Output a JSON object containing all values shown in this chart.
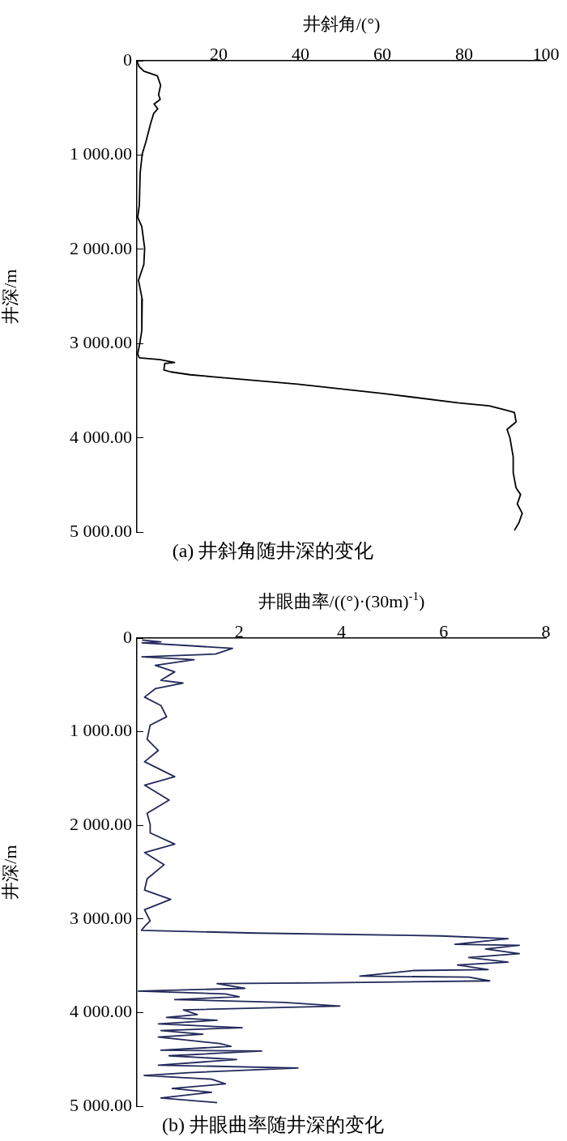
{
  "chart_data": [
    {
      "type": "line",
      "title": "(a) 井斜角随井深的变化",
      "xlabel": "井斜角/(°)",
      "ylabel": "井深/m",
      "xlim": [
        0,
        100
      ],
      "xticks": [
        20,
        40,
        60,
        80,
        100
      ],
      "ylim": [
        5000,
        0
      ],
      "yticks": [
        {
          "value": 0,
          "label": "0"
        },
        {
          "value": 1000,
          "label": "1 000.00"
        },
        {
          "value": 2000,
          "label": "2 000.00"
        },
        {
          "value": 3000,
          "label": "3 000.00"
        },
        {
          "value": 4000,
          "label": "4 000.00"
        },
        {
          "value": 5000,
          "label": "5 000.00"
        }
      ],
      "grid": false,
      "legend": false,
      "marker": "none",
      "line_style": "solid",
      "series": [
        {
          "color": "#000000",
          "x": [
            0,
            0.5,
            1.7,
            5.0,
            5.8,
            5.3,
            5.7,
            4.2,
            5.1,
            4.1,
            3.4,
            2.8,
            2.2,
            1.3,
            0.8,
            0.6,
            0.2,
            1.2,
            1.9,
            1.7,
            0.4,
            1.3,
            1.2,
            0.7,
            0.2,
            0.6,
            5.7,
            9.2,
            6.8,
            6.6,
            8.3,
            13.0,
            18.1,
            39.3,
            60.5,
            78.8,
            86.1,
            89.8,
            92.3,
            92.7,
            90.5,
            91.2,
            92.0,
            92.0,
            92.7,
            93.8,
            93.0,
            94.2,
            93.4,
            92.3
          ],
          "values": [
            0,
            60,
            110,
            160,
            260,
            360,
            410,
            460,
            510,
            560,
            660,
            760,
            860,
            990,
            1190,
            1530,
            1660,
            1760,
            1990,
            2160,
            2330,
            2530,
            2860,
            3000,
            3110,
            3150,
            3170,
            3200,
            3210,
            3280,
            3300,
            3330,
            3350,
            3430,
            3530,
            3630,
            3660,
            3700,
            3730,
            3830,
            3910,
            4000,
            4200,
            4370,
            4530,
            4600,
            4700,
            4800,
            4900,
            4980
          ]
        }
      ]
    },
    {
      "type": "line",
      "title": "(b) 井眼曲率随井深的变化",
      "xlabel": "井眼曲率/((°)·(30m)$^{-1}$)",
      "ylabel": "井深/m",
      "xlim": [
        0,
        8
      ],
      "xticks": [
        2,
        4,
        6,
        8
      ],
      "ylim": [
        5000,
        0
      ],
      "yticks": [
        {
          "value": 0,
          "label": "0"
        },
        {
          "value": 1000,
          "label": "1 000.00"
        },
        {
          "value": 2000,
          "label": "2 000.00"
        },
        {
          "value": 3000,
          "label": "3 000.00"
        },
        {
          "value": 4000,
          "label": "4 000.00"
        },
        {
          "value": 5000,
          "label": "5 000.00"
        }
      ],
      "grid": false,
      "legend": false,
      "marker": "none",
      "line_style": "solid",
      "series": [
        {
          "color": "#22285a",
          "x": [
            0.1,
            0.47,
            0.1,
            1.0,
            1.87,
            1.54,
            0.1,
            1.12,
            0.36,
            0.74,
            0.47,
            0.9,
            0.36,
            0.15,
            0.47,
            0.58,
            0.26,
            0.2,
            0.42,
            0.15,
            0.74,
            0.15,
            0.63,
            0.2,
            0.26,
            0.26,
            0.74,
            0.15,
            0.53,
            0.2,
            0.15,
            0.66,
            0.15,
            0.26,
            0.15,
            0.09,
            2.33,
            5.94,
            7.26,
            6.22,
            7.48,
            6.82,
            7.48,
            6.49,
            7.26,
            6.27,
            6.87,
            5.4,
            4.36,
            6.49,
            6.9,
            3.75,
            1.57,
            2.11,
            0.03,
            1.73,
            2.0,
            0.74,
            2.88,
            3.97,
            0.91,
            1.18,
            0.58,
            1.57,
            0.42,
            2.06,
            0.47,
            1.29,
            0.42,
            1.62,
            1.84,
            0.47,
            2.44,
            0.63,
            1.95,
            0.42,
            3.15,
            1.02,
            0.14,
            1.46,
            1.73,
            0.69,
            1.46,
            0.47,
            1.57
          ],
          "values": [
            20,
            40,
            50,
            80,
            110,
            170,
            200,
            230,
            290,
            360,
            450,
            480,
            540,
            630,
            720,
            840,
            930,
            1080,
            1200,
            1320,
            1480,
            1570,
            1730,
            1870,
            1990,
            2080,
            2200,
            2290,
            2420,
            2570,
            2690,
            2790,
            2900,
            3020,
            3080,
            3120,
            3150,
            3180,
            3210,
            3270,
            3280,
            3320,
            3370,
            3410,
            3460,
            3490,
            3540,
            3550,
            3610,
            3620,
            3660,
            3680,
            3690,
            3740,
            3770,
            3800,
            3830,
            3860,
            3890,
            3930,
            3970,
            4020,
            4050,
            4080,
            4120,
            4160,
            4190,
            4230,
            4260,
            4330,
            4360,
            4400,
            4410,
            4460,
            4500,
            4560,
            4590,
            4640,
            4670,
            4710,
            4760,
            4810,
            4850,
            4910,
            4960
          ]
        }
      ]
    }
  ]
}
